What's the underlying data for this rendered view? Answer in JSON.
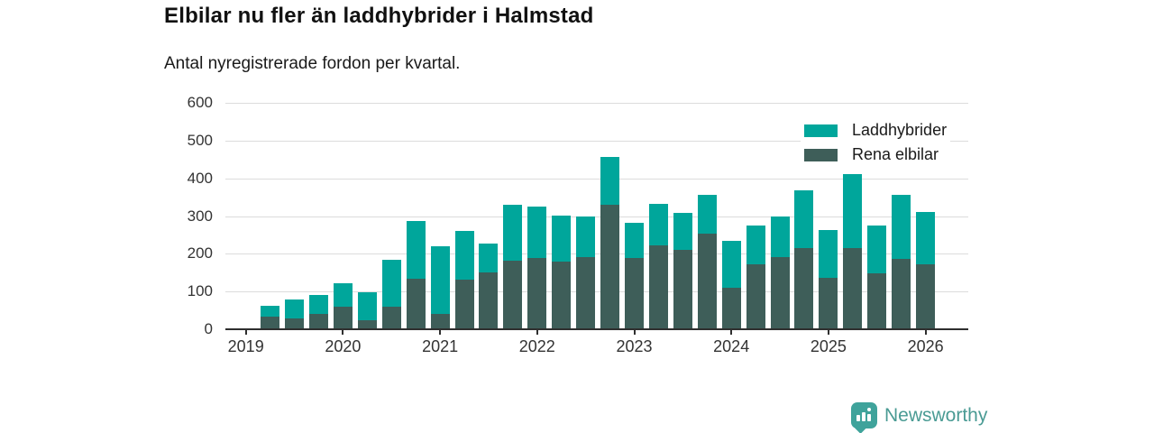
{
  "header": {
    "title": "Elbilar nu fler än laddhybrider i Halmstad",
    "subtitle": "Antal nyregistrerade fordon per kvartal."
  },
  "legend": {
    "items": [
      {
        "label": "Laddhybrider",
        "color": "#00a69b"
      },
      {
        "label": "Rena elbilar",
        "color": "#3e5e59"
      }
    ]
  },
  "chart_data": {
    "type": "bar",
    "stacked": true,
    "title": "Elbilar nu fler än laddhybrider i Halmstad",
    "subtitle": "Antal nyregistrerade fordon per kvartal.",
    "categories": [
      "2019 Q2",
      "2019 Q3",
      "2019 Q4",
      "2020 Q1",
      "2020 Q2",
      "2020 Q3",
      "2020 Q4",
      "2021 Q1",
      "2021 Q2",
      "2021 Q3",
      "2021 Q4",
      "2022 Q1",
      "2022 Q2",
      "2022 Q3",
      "2022 Q4",
      "2023 Q1",
      "2023 Q2",
      "2023 Q3",
      "2023 Q4",
      "2024 Q1",
      "2024 Q2",
      "2024 Q3",
      "2024 Q4",
      "2025 Q1",
      "2025 Q2",
      "2025 Q3",
      "2025 Q4",
      "2026 Q1"
    ],
    "series": [
      {
        "name": "Rena elbilar",
        "color": "#3e5e59",
        "values": [
          33,
          28,
          41,
          59,
          24,
          60,
          133,
          40,
          132,
          151,
          181,
          189,
          180,
          191,
          330,
          189,
          222,
          210,
          254,
          110,
          171,
          192,
          214,
          137,
          214,
          149,
          186,
          173
        ]
      },
      {
        "name": "Laddhybrider",
        "color": "#00a69b",
        "values": [
          29,
          50,
          51,
          63,
          73,
          125,
          155,
          180,
          129,
          77,
          149,
          135,
          122,
          108,
          127,
          93,
          111,
          98,
          103,
          125,
          104,
          106,
          154,
          125,
          197,
          127,
          170,
          137
        ]
      }
    ],
    "ylim": [
      0,
      600
    ],
    "yticks": [
      0,
      100,
      200,
      300,
      400,
      500,
      600
    ],
    "xticks": [
      "2019",
      "2020",
      "2021",
      "2022",
      "2023",
      "2024",
      "2025",
      "2026"
    ],
    "grid": true,
    "legend_position": "top-right",
    "colors": {
      "grid": "#dcdcdc",
      "axis": "#2f2f2f",
      "tick_label": "#333333"
    }
  },
  "footer": {
    "brand": "Newsworthy",
    "logo_icon": "bar-chart-speech-bubble-icon",
    "logo_color": "#3fa39b"
  }
}
